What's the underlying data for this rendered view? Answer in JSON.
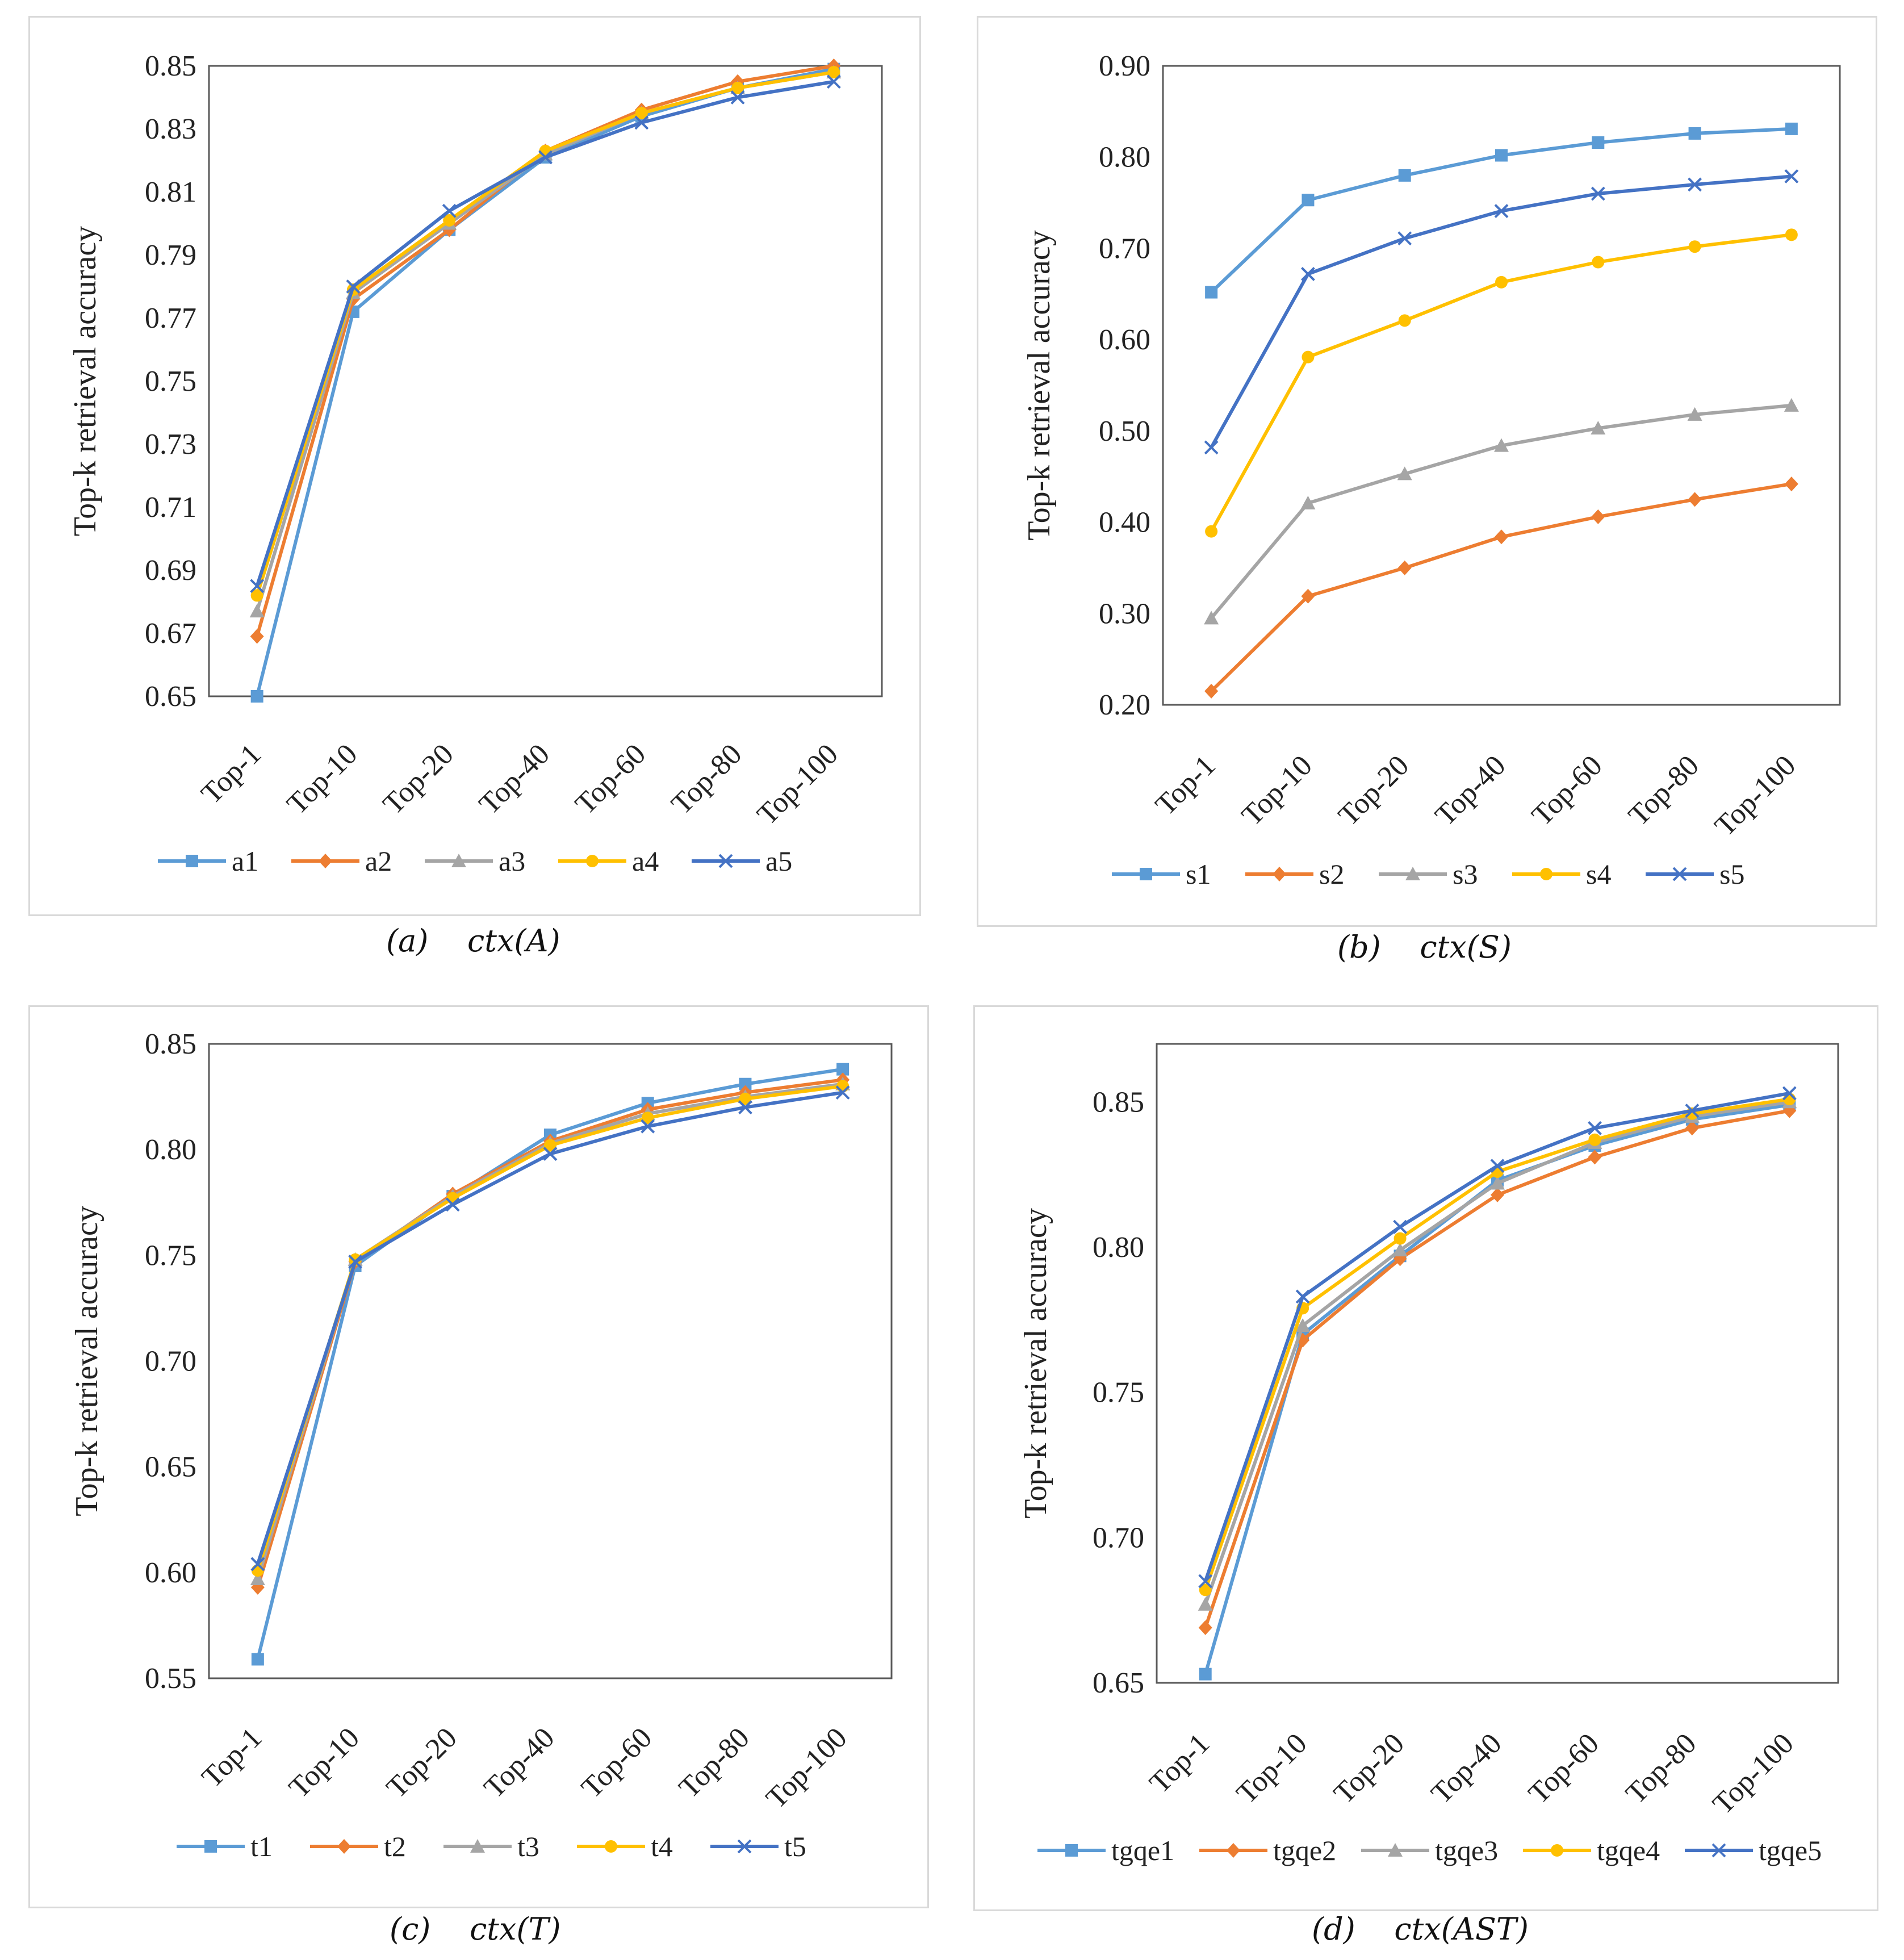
{
  "figures": [
    {
      "id": "a",
      "caption_label": "(a)",
      "caption_ctx": "ctx",
      "caption_arg": "(A)"
    },
    {
      "id": "b",
      "caption_label": "(b)",
      "caption_ctx": "ctx",
      "caption_arg": "(S)"
    },
    {
      "id": "c",
      "caption_label": "(c)",
      "caption_ctx": "ctx",
      "caption_arg": "(T)"
    },
    {
      "id": "d",
      "caption_label": "(d)",
      "caption_ctx": "ctx",
      "caption_arg": "(AST)"
    }
  ],
  "colors": [
    "#5b9bd5",
    "#ed7d31",
    "#a5a5a5",
    "#ffc000",
    "#4472c4"
  ],
  "markers": [
    "square",
    "diamond",
    "triangle",
    "circle",
    "x"
  ],
  "chart_data": [
    {
      "id": "a",
      "type": "line",
      "title": "",
      "xlabel": "",
      "ylabel": "Top-k retrieval accuracy",
      "categories": [
        "Top-1",
        "Top-10",
        "Top-20",
        "Top-40",
        "Top-60",
        "Top-80",
        "Top-100"
      ],
      "ylim": [
        0.65,
        0.85
      ],
      "yticks": [
        "0.65",
        "0.67",
        "0.69",
        "0.71",
        "0.73",
        "0.75",
        "0.77",
        "0.79",
        "0.81",
        "0.83",
        "0.85"
      ],
      "legend_position": "bottom",
      "series": [
        {
          "name": "a1",
          "values": [
            0.65,
            0.772,
            0.798,
            0.821,
            0.834,
            0.843,
            0.849
          ]
        },
        {
          "name": "a2",
          "values": [
            0.669,
            0.776,
            0.798,
            0.823,
            0.836,
            0.845,
            0.85
          ]
        },
        {
          "name": "a3",
          "values": [
            0.677,
            0.778,
            0.8,
            0.822,
            0.835,
            0.843,
            0.848
          ]
        },
        {
          "name": "a4",
          "values": [
            0.682,
            0.779,
            0.801,
            0.823,
            0.835,
            0.843,
            0.848
          ]
        },
        {
          "name": "a5",
          "values": [
            0.685,
            0.78,
            0.804,
            0.821,
            0.832,
            0.84,
            0.845
          ]
        }
      ]
    },
    {
      "id": "b",
      "type": "line",
      "title": "",
      "xlabel": "",
      "ylabel": "Top-k retrieval accuracy",
      "categories": [
        "Top-1",
        "Top-10",
        "Top-20",
        "Top-40",
        "Top-60",
        "Top-80",
        "Top-100"
      ],
      "ylim": [
        0.2,
        0.9
      ],
      "yticks": [
        "0.20",
        "0.30",
        "0.40",
        "0.50",
        "0.60",
        "0.70",
        "0.80",
        "0.90"
      ],
      "legend_position": "bottom",
      "series": [
        {
          "name": "s1",
          "values": [
            0.652,
            0.753,
            0.78,
            0.802,
            0.816,
            0.826,
            0.831
          ]
        },
        {
          "name": "s2",
          "values": [
            0.215,
            0.319,
            0.35,
            0.384,
            0.406,
            0.425,
            0.442
          ]
        },
        {
          "name": "s3",
          "values": [
            0.295,
            0.421,
            0.453,
            0.484,
            0.503,
            0.518,
            0.528
          ]
        },
        {
          "name": "s4",
          "values": [
            0.39,
            0.581,
            0.621,
            0.663,
            0.685,
            0.702,
            0.715
          ]
        },
        {
          "name": "s5",
          "values": [
            0.482,
            0.672,
            0.711,
            0.741,
            0.76,
            0.77,
            0.779
          ]
        }
      ]
    },
    {
      "id": "c",
      "type": "line",
      "title": "",
      "xlabel": "",
      "ylabel": "Top-k retrieval accuracy",
      "categories": [
        "Top-1",
        "Top-10",
        "Top-20",
        "Top-40",
        "Top-60",
        "Top-80",
        "Top-100"
      ],
      "ylim": [
        0.55,
        0.85
      ],
      "yticks": [
        "0.55",
        "0.60",
        "0.65",
        "0.70",
        "0.75",
        "0.80",
        "0.85"
      ],
      "legend_position": "bottom",
      "series": [
        {
          "name": "t1",
          "values": [
            0.559,
            0.745,
            0.778,
            0.807,
            0.822,
            0.831,
            0.838
          ]
        },
        {
          "name": "t2",
          "values": [
            0.593,
            0.747,
            0.779,
            0.804,
            0.819,
            0.827,
            0.833
          ]
        },
        {
          "name": "t3",
          "values": [
            0.597,
            0.748,
            0.778,
            0.803,
            0.817,
            0.825,
            0.831
          ]
        },
        {
          "name": "t4",
          "values": [
            0.601,
            0.748,
            0.777,
            0.802,
            0.815,
            0.824,
            0.83
          ]
        },
        {
          "name": "t5",
          "values": [
            0.604,
            0.747,
            0.774,
            0.798,
            0.811,
            0.82,
            0.827
          ]
        }
      ]
    },
    {
      "id": "d",
      "type": "line",
      "title": "",
      "xlabel": "",
      "ylabel": "Top-k retrieval accuracy",
      "categories": [
        "Top-1",
        "Top-10",
        "Top-20",
        "Top-40",
        "Top-60",
        "Top-80",
        "Top-100"
      ],
      "ylim": [
        0.65,
        0.87
      ],
      "yticks": [
        "0.65",
        "0.70",
        "0.75",
        "0.80",
        "0.85"
      ],
      "legend_position": "bottom",
      "series": [
        {
          "name": "tgqe1",
          "values": [
            0.653,
            0.77,
            0.797,
            0.823,
            0.835,
            0.844,
            0.849
          ]
        },
        {
          "name": "tgqe2",
          "values": [
            0.669,
            0.768,
            0.796,
            0.818,
            0.831,
            0.841,
            0.847
          ]
        },
        {
          "name": "tgqe3",
          "values": [
            0.677,
            0.773,
            0.799,
            0.822,
            0.836,
            0.845,
            0.85
          ]
        },
        {
          "name": "tgqe4",
          "values": [
            0.682,
            0.779,
            0.803,
            0.826,
            0.837,
            0.846,
            0.851
          ]
        },
        {
          "name": "tgqe5",
          "values": [
            0.685,
            0.783,
            0.807,
            0.828,
            0.841,
            0.847,
            0.853
          ]
        }
      ]
    }
  ]
}
